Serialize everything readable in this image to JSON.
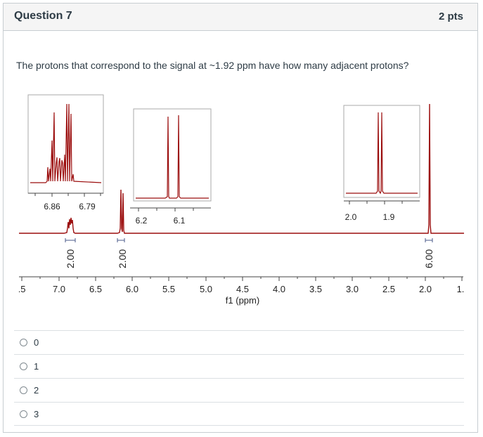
{
  "question": {
    "title": "Question 7",
    "points": "2 pts",
    "text": "The protons that correspond to the signal at ~1.92 ppm have how many adjacent protons?"
  },
  "spectrum": {
    "x_axis_label": "f1 (ppm)",
    "x_ticks": [
      ".5",
      "7.0",
      "6.5",
      "6.0",
      "5.5",
      "5.0",
      "4.5",
      "4.0",
      "3.5",
      "3.0",
      "2.5",
      "2.0",
      "1."
    ],
    "integrals": [
      "2.00",
      "2.00",
      "6.00"
    ],
    "insets": [
      {
        "ticks": [
          "6.86",
          "6.79"
        ]
      },
      {
        "ticks": [
          "6.2",
          "6.1"
        ]
      },
      {
        "ticks": [
          "2.0",
          "1.9"
        ]
      }
    ],
    "line_color": "#9b0d0d"
  },
  "answers": [
    {
      "label": "0"
    },
    {
      "label": "1"
    },
    {
      "label": "2"
    },
    {
      "label": "3"
    }
  ]
}
